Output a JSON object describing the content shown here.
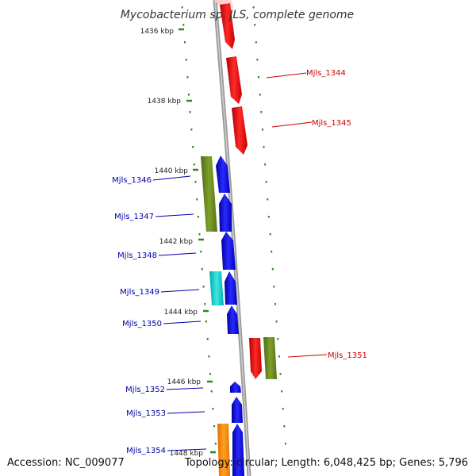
{
  "title": "Mycobacterium sp. JLS, complete genome",
  "footer": {
    "accession": "Accession: NC_009077",
    "topology": "Topology: circular; Length: 6,048,425 bp; Genes: 5,796"
  },
  "ticks": [
    "1436 kbp",
    "1438 kbp",
    "1440 kbp",
    "1442 kbp",
    "1444 kbp",
    "1446 kbp",
    "1448 kbp"
  ],
  "genes": [
    "Mjls_1344",
    "Mjls_1345",
    "Mjls_1346",
    "Mjls_1347",
    "Mjls_1348",
    "Mjls_1349",
    "Mjls_1350",
    "Mjls_1351",
    "Mjls_1352",
    "Mjls_1353",
    "Mjls_1354"
  ],
  "colors": {
    "backbone": "#888888",
    "dots": "#2a8a1a",
    "forward_label": "#cc0000",
    "reverse_label": "#0000aa",
    "red": "#ee1111",
    "blue": "#1111ee",
    "olive": "#6b8e23",
    "cyan": "#11cccc",
    "orange": "#ff8800",
    "pink": "#ffb0b0"
  }
}
